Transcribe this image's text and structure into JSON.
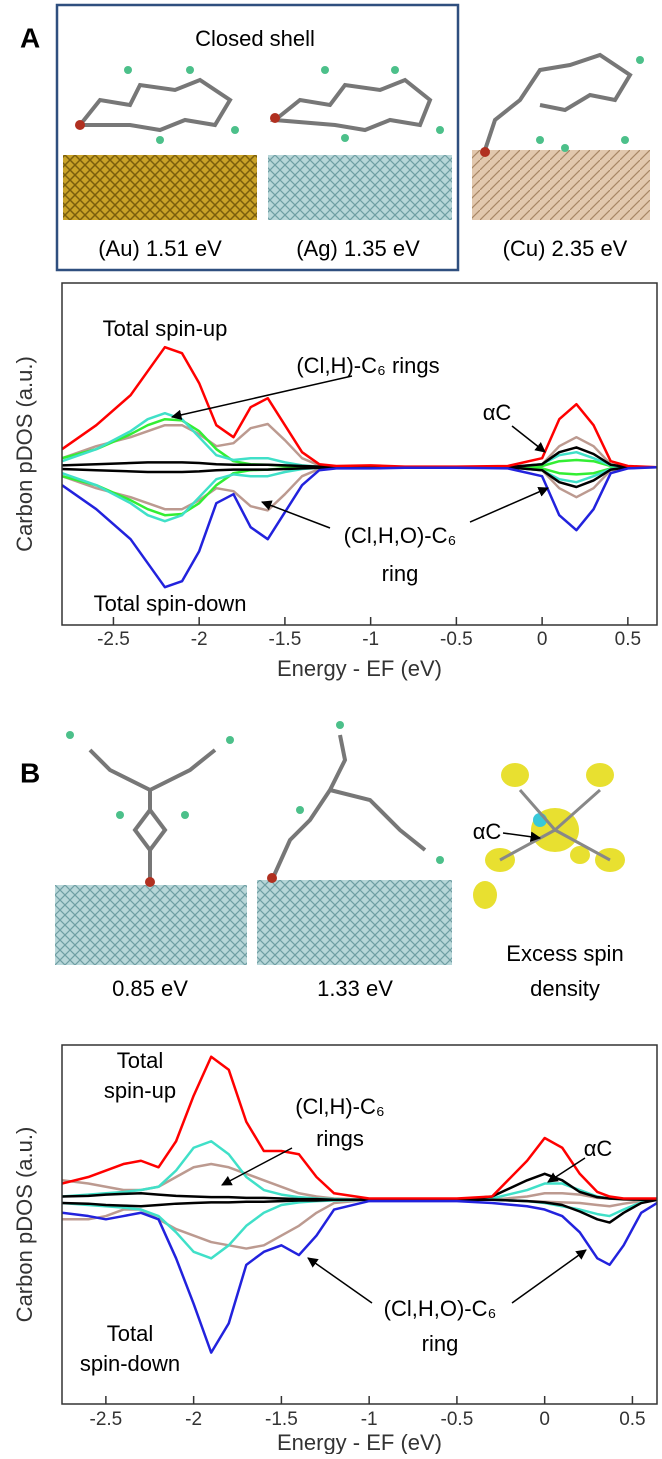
{
  "panel_a": {
    "label": "A",
    "box_title": "Closed shell",
    "captions": [
      "(Au) 1.51 eV",
      "(Ag) 1.35 eV",
      "(Cu) 2.35 eV"
    ]
  },
  "panel_b": {
    "label": "B",
    "image_label": "αC",
    "captions": [
      "0.85 eV",
      "1.33 eV",
      "Excess spin",
      "density"
    ]
  },
  "chart_data": [
    {
      "type": "line",
      "xlabel": "Energy - EF (eV)",
      "ylabel": "Carbon pDOS (a.u.)",
      "x": [
        -2.8,
        -2.6,
        -2.4,
        -2.3,
        -2.2,
        -2.1,
        -2.0,
        -1.9,
        -1.8,
        -1.7,
        -1.6,
        -1.5,
        -1.4,
        -1.3,
        -1.2,
        -1.0,
        -0.8,
        -0.5,
        -0.2,
        0.0,
        0.1,
        0.2,
        0.3,
        0.4,
        0.5,
        0.67
      ],
      "xlim": [
        -2.8,
        0.67
      ],
      "xticks": [
        -2.5,
        -2,
        -1.5,
        -1,
        -0.5,
        0,
        0.5
      ],
      "ylim": [
        -2.63,
        3.07
      ],
      "series": [
        {
          "color": "#bc9a90",
          "values": [
            0.15,
            0.35,
            0.5,
            0.6,
            0.7,
            0.7,
            0.55,
            0.35,
            0.4,
            0.65,
            0.72,
            0.45,
            0.15,
            0.03,
            0.01,
            0.01,
            0,
            0,
            0,
            0.05,
            0.35,
            0.5,
            0.35,
            0.05,
            0.01,
            0
          ]
        },
        {
          "color": "#bc9a90",
          "values": [
            -0.15,
            -0.35,
            -0.5,
            -0.6,
            -0.7,
            -0.7,
            -0.55,
            -0.35,
            -0.4,
            -0.65,
            -0.72,
            -0.45,
            -0.15,
            -0.03,
            -0.01,
            -0.01,
            0,
            0,
            0,
            -0.05,
            -0.35,
            -0.5,
            -0.35,
            -0.05,
            -0.01,
            0
          ]
        },
        {
          "color": "#33ee33",
          "values": [
            0.15,
            0.3,
            0.55,
            0.7,
            0.8,
            0.78,
            0.6,
            0.3,
            0.1,
            0.05,
            0.04,
            0.02,
            0.01,
            0,
            0,
            0,
            0,
            0,
            0,
            0.02,
            0.1,
            0.12,
            0.1,
            0.02,
            0,
            0
          ]
        },
        {
          "color": "#33ee33",
          "values": [
            -0.15,
            -0.3,
            -0.55,
            -0.7,
            -0.8,
            -0.78,
            -0.6,
            -0.3,
            -0.1,
            -0.05,
            -0.04,
            -0.02,
            -0.01,
            0,
            0,
            0,
            0,
            0,
            0,
            -0.02,
            -0.1,
            -0.12,
            -0.1,
            -0.02,
            0,
            0
          ]
        },
        {
          "color": "#40e0c8",
          "values": [
            0.1,
            0.3,
            0.6,
            0.8,
            0.9,
            0.8,
            0.5,
            0.2,
            0.12,
            0.15,
            0.15,
            0.08,
            0.03,
            0.01,
            0,
            0,
            0,
            0,
            0,
            0.05,
            0.2,
            0.25,
            0.15,
            0.03,
            0,
            0
          ]
        },
        {
          "color": "#40e0c8",
          "values": [
            -0.1,
            -0.3,
            -0.6,
            -0.8,
            -0.9,
            -0.8,
            -0.5,
            -0.2,
            -0.12,
            -0.15,
            -0.15,
            -0.08,
            -0.03,
            -0.01,
            0,
            0,
            0,
            0,
            0,
            -0.05,
            -0.2,
            -0.25,
            -0.15,
            -0.03,
            0,
            0
          ]
        },
        {
          "color": "#000000",
          "values": [
            0.03,
            0.05,
            0.07,
            0.08,
            0.08,
            0.08,
            0.07,
            0.05,
            0.04,
            0.04,
            0.04,
            0.03,
            0.02,
            0.01,
            0,
            0,
            0,
            0,
            0,
            0.05,
            0.25,
            0.33,
            0.22,
            0.04,
            0,
            0
          ]
        },
        {
          "color": "#000000",
          "values": [
            -0.03,
            -0.05,
            -0.07,
            -0.08,
            -0.08,
            -0.08,
            -0.07,
            -0.05,
            -0.04,
            -0.04,
            -0.04,
            -0.03,
            -0.02,
            -0.01,
            0,
            0,
            0,
            0,
            0,
            -0.05,
            -0.25,
            -0.33,
            -0.22,
            -0.04,
            0,
            0
          ]
        },
        {
          "color": "#ff0000",
          "values": [
            0.3,
            0.7,
            1.2,
            1.6,
            2.0,
            1.9,
            1.4,
            0.7,
            0.5,
            1.0,
            1.15,
            0.7,
            0.25,
            0.05,
            0.02,
            0.03,
            0.01,
            0.01,
            0.02,
            0.15,
            0.8,
            1.05,
            0.7,
            0.1,
            0.02,
            0
          ]
        },
        {
          "color": "#2222dd",
          "values": [
            -0.3,
            -0.7,
            -1.2,
            -1.6,
            -2.0,
            -1.9,
            -1.4,
            -0.6,
            -0.45,
            -1.0,
            -1.2,
            -0.75,
            -0.3,
            -0.05,
            -0.02,
            -0.02,
            -0.01,
            -0.01,
            -0.02,
            -0.15,
            -0.8,
            -1.05,
            -0.7,
            -0.1,
            -0.02,
            0
          ]
        }
      ],
      "annotations": [
        "Total spin-up",
        "(Cl,H)-C₆ rings",
        "αC",
        "(Cl,H,O)-C₆",
        "ring",
        "Total spin-down"
      ]
    },
    {
      "type": "line",
      "xlabel": "Energy - EF (eV)",
      "ylabel": "Carbon pDOS (a.u.)",
      "x": [
        -2.75,
        -2.6,
        -2.5,
        -2.4,
        -2.3,
        -2.2,
        -2.1,
        -2.0,
        -1.9,
        -1.8,
        -1.7,
        -1.6,
        -1.5,
        -1.4,
        -1.3,
        -1.2,
        -1.0,
        -0.8,
        -0.5,
        -0.3,
        -0.1,
        0.0,
        0.1,
        0.2,
        0.3,
        0.37,
        0.45,
        0.55,
        0.64
      ],
      "xlim": [
        -2.75,
        0.64
      ],
      "xticks": [
        -2.5,
        -2,
        -1.5,
        -1,
        -0.5,
        0,
        0.5
      ],
      "ylim": [
        -3.14,
        2.38
      ],
      "series": [
        {
          "color": "#bc9a90",
          "values": [
            0.3,
            0.25,
            0.2,
            0.15,
            0.15,
            0.2,
            0.35,
            0.5,
            0.55,
            0.5,
            0.4,
            0.3,
            0.2,
            0.1,
            0.05,
            0.02,
            0,
            0,
            0,
            0,
            0.05,
            0.1,
            0.1,
            0.08,
            0.03,
            0.02,
            0,
            0,
            0
          ]
        },
        {
          "color": "#bc9a90",
          "values": [
            -0.3,
            -0.3,
            -0.25,
            -0.15,
            -0.15,
            -0.3,
            -0.45,
            -0.55,
            -0.65,
            -0.7,
            -0.75,
            -0.7,
            -0.55,
            -0.4,
            -0.2,
            -0.05,
            0,
            0,
            0,
            0,
            -0.02,
            -0.03,
            -0.04,
            -0.05,
            -0.08,
            -0.1,
            -0.06,
            -0.02,
            0
          ]
        },
        {
          "color": "#40e0c8",
          "values": [
            0.05,
            0.08,
            0.1,
            0.12,
            0.15,
            0.2,
            0.45,
            0.8,
            0.9,
            0.7,
            0.35,
            0.15,
            0.08,
            0.04,
            0.02,
            0.01,
            0,
            0,
            0,
            0.02,
            0.15,
            0.25,
            0.25,
            0.15,
            0.05,
            0.02,
            0.01,
            0,
            0
          ]
        },
        {
          "color": "#40e0c8",
          "values": [
            -0.05,
            -0.08,
            -0.1,
            -0.12,
            -0.15,
            -0.25,
            -0.5,
            -0.8,
            -0.9,
            -0.7,
            -0.4,
            -0.2,
            -0.08,
            -0.04,
            -0.02,
            -0.01,
            0,
            0,
            0,
            0,
            -0.02,
            -0.05,
            -0.1,
            -0.15,
            -0.22,
            -0.25,
            -0.15,
            -0.04,
            0
          ]
        },
        {
          "color": "#000000",
          "values": [
            0.05,
            0.06,
            0.08,
            0.09,
            0.1,
            0.08,
            0.06,
            0.05,
            0.04,
            0.04,
            0.03,
            0.03,
            0.02,
            0.01,
            0.01,
            0,
            0,
            0,
            0,
            0.05,
            0.3,
            0.4,
            0.3,
            0.12,
            0.04,
            0.02,
            0.01,
            0,
            0
          ]
        },
        {
          "color": "#000000",
          "values": [
            -0.05,
            -0.06,
            -0.08,
            -0.09,
            -0.1,
            -0.08,
            -0.06,
            -0.05,
            -0.04,
            -0.04,
            -0.03,
            -0.03,
            -0.02,
            -0.01,
            -0.01,
            0,
            0,
            0,
            0,
            0,
            -0.02,
            -0.04,
            -0.08,
            -0.18,
            -0.3,
            -0.35,
            -0.2,
            -0.05,
            0
          ]
        },
        {
          "color": "#ff0000",
          "values": [
            0.25,
            0.35,
            0.45,
            0.55,
            0.6,
            0.5,
            0.9,
            1.6,
            2.2,
            2.0,
            1.2,
            0.75,
            0.75,
            0.7,
            0.35,
            0.1,
            0.02,
            0.02,
            0.02,
            0.05,
            0.6,
            0.95,
            0.8,
            0.4,
            0.12,
            0.05,
            0.02,
            0.02,
            0.02
          ]
        },
        {
          "color": "#2222dd",
          "values": [
            -0.2,
            -0.25,
            -0.3,
            -0.25,
            -0.2,
            -0.3,
            -0.9,
            -1.6,
            -2.35,
            -1.9,
            -1.0,
            -0.8,
            -0.7,
            -0.85,
            -0.55,
            -0.15,
            -0.02,
            -0.02,
            -0.02,
            -0.05,
            -0.1,
            -0.15,
            -0.25,
            -0.5,
            -0.9,
            -1.0,
            -0.7,
            -0.2,
            -0.05
          ]
        }
      ],
      "annotations": [
        "Total",
        "spin-up",
        "(Cl,H)-C₆",
        "rings",
        "αC",
        "(Cl,H,O)-C₆",
        "ring",
        "Total",
        "spin-down"
      ]
    }
  ]
}
